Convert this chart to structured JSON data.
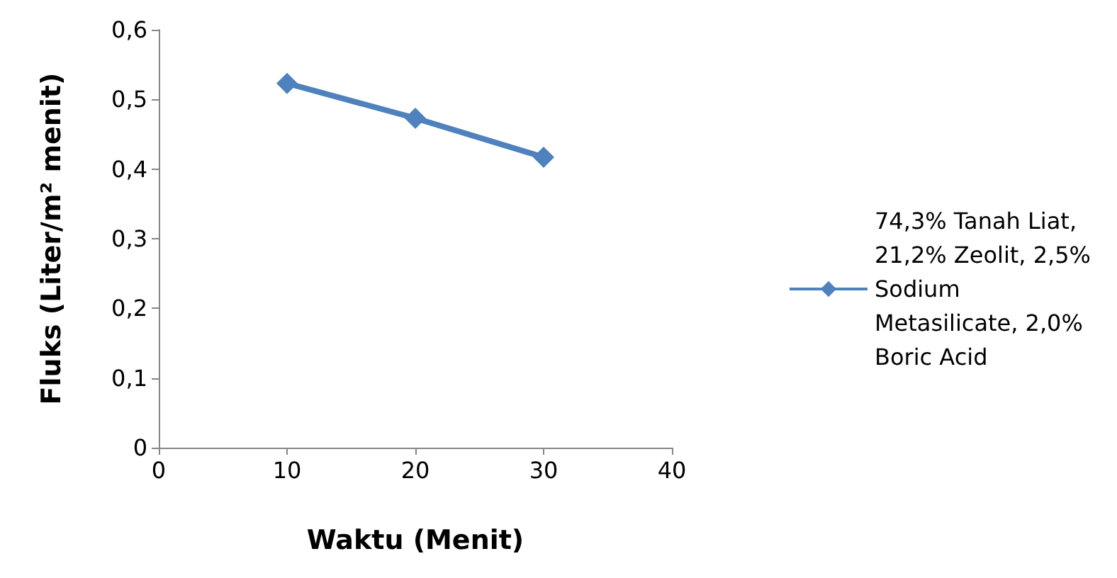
{
  "chart_data": {
    "type": "line",
    "xlabel": "Waktu (Menit)",
    "ylabel": "Fluks (Liter/m² menit)",
    "x": [
      10,
      20,
      30
    ],
    "series": [
      {
        "name": "74,3% Tanah Liat, 21,2% Zeolit, 2,5% Sodium Metasilicate, 2,0% Boric Acid",
        "color": "#4f81bd",
        "values": [
          0.523,
          0.473,
          0.417
        ]
      }
    ],
    "xlim": [
      0,
      40
    ],
    "xticks": [
      0,
      10,
      20,
      30,
      40
    ],
    "ylim": [
      0,
      0.6
    ],
    "yticks": [
      {
        "value": 0,
        "label": "0"
      },
      {
        "value": 0.1,
        "label": "0,1"
      },
      {
        "value": 0.2,
        "label": "0,2"
      },
      {
        "value": 0.3,
        "label": "0,3"
      },
      {
        "value": 0.4,
        "label": "0,4"
      },
      {
        "value": 0.5,
        "label": "0,5"
      },
      {
        "value": 0.6,
        "label": "0,6"
      }
    ],
    "grid": false,
    "legend": "right",
    "marker": "diamond",
    "line_style": "solid"
  }
}
